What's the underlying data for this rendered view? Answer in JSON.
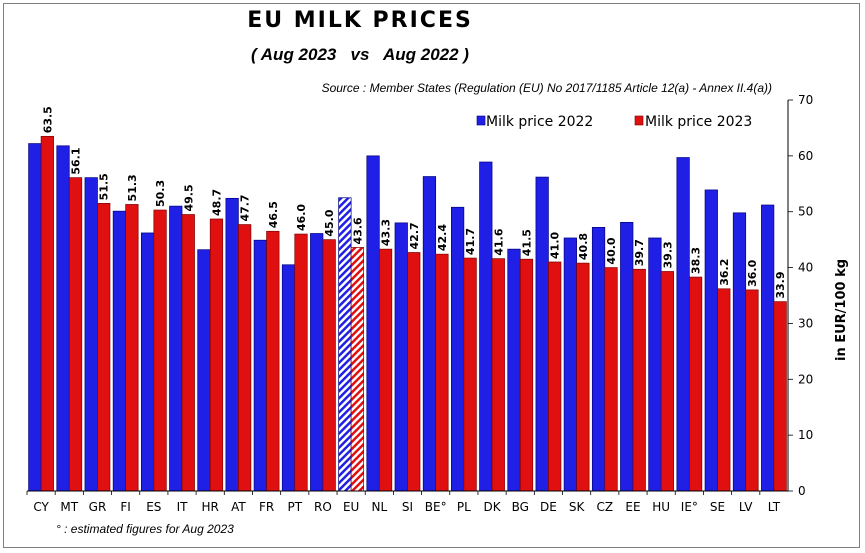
{
  "title": "EU  MILK  PRICES",
  "subtitle": "( Aug 2023   vs   Aug 2022 )",
  "source": "Source : Member States (Regulation (EU) No 2017/1185 Article 12(a) - Annex II.4(a))",
  "footnote": "° : estimated figures for Aug 2023",
  "colors": {
    "series_2022": "#1f1fe6",
    "series_2023": "#e01010",
    "series_2022_edge": "#000080",
    "series_2023_edge": "#800000"
  },
  "chart_data": {
    "type": "bar",
    "ylabel": "in EUR/100 kg",
    "ylim": [
      0,
      70
    ],
    "yticks": [
      0,
      10,
      20,
      30,
      40,
      50,
      60,
      70
    ],
    "y_axis_side": "right",
    "grid": false,
    "legend_position": "top-right",
    "categories": [
      "CY",
      "MT",
      "GR",
      "FI",
      "ES",
      "IT",
      "HR",
      "AT",
      "FR",
      "PT",
      "RO",
      "EU",
      "NL",
      "SI",
      "BE°",
      "PL",
      "DK",
      "BG",
      "DE",
      "SK",
      "CZ",
      "EE",
      "HU",
      "IE°",
      "SE",
      "LV",
      "LT"
    ],
    "highlight_category": "EU",
    "series": [
      {
        "name": "Milk price 2022",
        "values": [
          62.2,
          61.8,
          56.1,
          50.1,
          46.2,
          51.0,
          43.2,
          52.4,
          44.9,
          40.5,
          46.1,
          52.5,
          60.0,
          48.0,
          56.3,
          50.8,
          58.9,
          43.3,
          56.2,
          45.3,
          47.2,
          48.1,
          45.3,
          59.7,
          53.9,
          49.8,
          51.2
        ]
      },
      {
        "name": "Milk price 2023",
        "values": [
          63.5,
          56.1,
          51.5,
          51.3,
          50.3,
          49.5,
          48.7,
          47.7,
          46.5,
          46.0,
          45.0,
          43.6,
          43.3,
          42.7,
          42.4,
          41.7,
          41.6,
          41.5,
          41.0,
          40.8,
          40.0,
          39.7,
          39.3,
          38.3,
          36.2,
          36.0,
          33.9
        ]
      }
    ],
    "data_labels_2023": [
      "63.5",
      "56.1",
      "51.5",
      "51.3",
      "50.3",
      "49.5",
      "48.7",
      "47.7",
      "46.5",
      "46.0",
      "45.0",
      "43.6",
      "43.3",
      "42.7",
      "42.4",
      "41.7",
      "41.6",
      "41.5",
      "41.0",
      "40.8",
      "40.0",
      "39.7",
      "39.3",
      "38.3",
      "36.2",
      "36.0",
      "33.9"
    ]
  }
}
